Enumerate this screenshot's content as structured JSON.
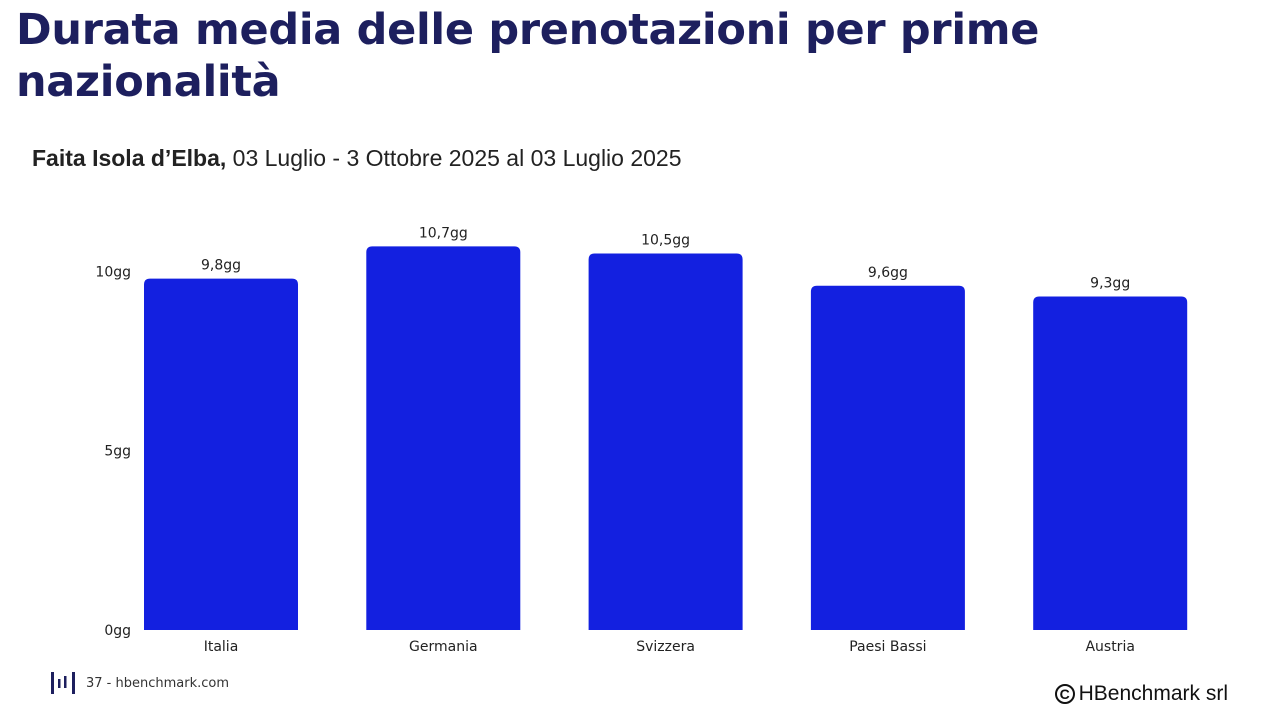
{
  "header": {
    "title": "Durata media delle prenotazioni per prime nazionalità",
    "subtitle_bold": "Faita Isola d’Elba,",
    "subtitle_rest": " 03 Luglio - 3 Ottobre 2025 al 03 Luglio 2025"
  },
  "footer": {
    "page_text": "37 - hbenchmark.com",
    "copyright_symbol": "C",
    "copyright_text": "HBenchmark srl"
  },
  "colors": {
    "bar": "#1320e0",
    "title": "#1d1f5e",
    "grid": "#e6e6e6"
  },
  "chart_data": {
    "type": "bar",
    "title": "",
    "xlabel": "",
    "ylabel": "",
    "categories": [
      "Italia",
      "Germania",
      "Svizzera",
      "Paesi Bassi",
      "Austria"
    ],
    "values": [
      9.8,
      10.7,
      10.5,
      9.6,
      9.3
    ],
    "data_labels": [
      "9,8gg",
      "10,7gg",
      "10,5gg",
      "9,6gg",
      "9,3gg"
    ],
    "yticks": [
      0,
      5,
      10
    ],
    "ytick_labels": [
      "0gg",
      "5gg",
      "10gg"
    ],
    "ylim": [
      0,
      11.1
    ],
    "grid": false,
    "legend": "none"
  }
}
